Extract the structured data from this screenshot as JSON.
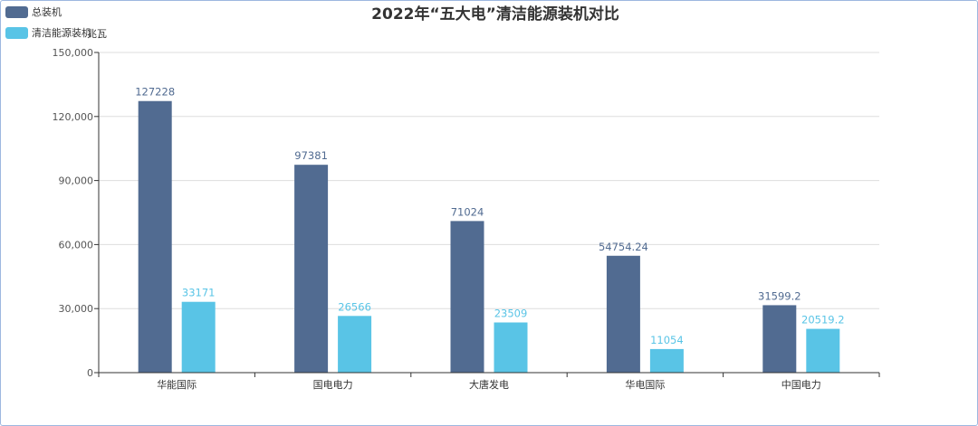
{
  "chart_data": {
    "type": "bar",
    "title": "2022年“五大电”清洁能源装机对比",
    "ylabel": "兆瓦",
    "categories": [
      "华能国际",
      "国电电力",
      "大唐发电",
      "华电国际",
      "中国电力"
    ],
    "series": [
      {
        "name": "总装机",
        "color": "#516b91",
        "values": [
          127228,
          97381,
          71024,
          54754.24,
          31599.2
        ],
        "labels": [
          "127228",
          "97381",
          "71024",
          "54754.24",
          "31599.2"
        ]
      },
      {
        "name": "清洁能源装机",
        "color": "#59c4e6",
        "values": [
          33171,
          26566,
          23509,
          11054,
          20519.2
        ],
        "labels": [
          "33171",
          "26566",
          "23509",
          "11054",
          "20519.2"
        ]
      }
    ],
    "yticks": [
      0,
      30000,
      60000,
      90000,
      120000,
      150000
    ],
    "ytick_labels": [
      "0",
      "30,000",
      "60,000",
      "90,000",
      "120,000",
      "150,000"
    ],
    "ylim": [
      0,
      150000
    ],
    "grid": true,
    "legend_position": "top-left"
  }
}
